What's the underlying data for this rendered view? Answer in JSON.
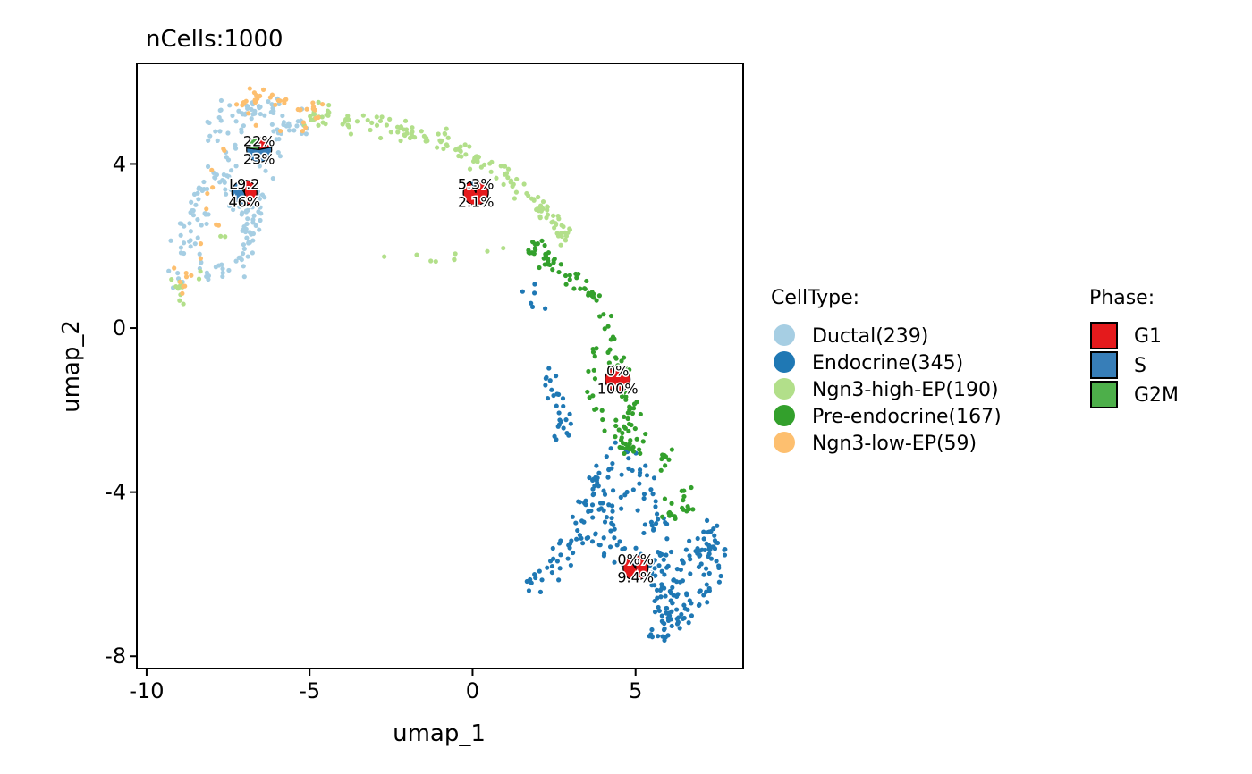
{
  "chart_data": {
    "type": "scatter",
    "title": "nCells:1000",
    "xlabel": "umap_1",
    "ylabel": "umap_2",
    "xlim": [
      -10.3,
      8.3
    ],
    "ylim": [
      -8.3,
      6.45
    ],
    "xticks": [
      -10,
      -5,
      0,
      5
    ],
    "yticks": [
      -8,
      -4,
      0,
      4
    ],
    "xtick_labels": [
      "-10",
      "-5",
      "0",
      "5"
    ],
    "ytick_labels": [
      "-8",
      "-4",
      "0",
      "4"
    ],
    "grid": false,
    "legend_celltype": {
      "title": "CellType:",
      "entries": [
        {
          "label": "Ductal(239)",
          "color": "#A6CEE3"
        },
        {
          "label": "Endocrine(345)",
          "color": "#1F78B4"
        },
        {
          "label": "Ngn3-high-EP(190)",
          "color": "#B2DF8A"
        },
        {
          "label": "Pre-endocrine(167)",
          "color": "#33A02C"
        },
        {
          "label": "Ngn3-low-EP(59)",
          "color": "#FDBF6F"
        }
      ]
    },
    "legend_phase": {
      "title": "Phase:",
      "entries": [
        {
          "label": "G1",
          "color": "#E41A1C"
        },
        {
          "label": "S",
          "color": "#377EB8"
        },
        {
          "label": "G2M",
          "color": "#4DAF4A"
        }
      ]
    },
    "series": [
      {
        "name": "Ductal(239)",
        "color": "#A6CEE3",
        "path": [
          [
            -9.1,
            1.0
          ],
          [
            -9.0,
            1.6
          ],
          [
            -8.9,
            2.2
          ],
          [
            -8.6,
            2.7
          ],
          [
            -8.4,
            3.2
          ],
          [
            -8.1,
            3.6
          ],
          [
            -7.8,
            3.7
          ],
          [
            -7.5,
            3.5
          ],
          [
            -7.3,
            3.2
          ],
          [
            -7.1,
            2.9
          ],
          [
            -6.9,
            2.6
          ],
          [
            -6.8,
            2.2
          ],
          [
            -6.9,
            1.8
          ],
          [
            -7.2,
            1.5
          ],
          [
            -7.6,
            1.3
          ],
          [
            -8.0,
            1.2
          ],
          [
            -8.4,
            1.6
          ],
          [
            -8.7,
            2.0
          ],
          [
            -7.4,
            4.0
          ],
          [
            -7.2,
            4.5
          ],
          [
            -7.1,
            5.0
          ],
          [
            -6.8,
            5.4
          ],
          [
            -6.4,
            5.5
          ],
          [
            -6.0,
            5.3
          ],
          [
            -5.9,
            4.9
          ],
          [
            -6.1,
            4.5
          ],
          [
            -6.3,
            4.1
          ],
          [
            -6.5,
            3.7
          ],
          [
            -6.6,
            3.3
          ],
          [
            -6.6,
            2.9
          ],
          [
            -6.7,
            2.5
          ],
          [
            -7.7,
            4.4
          ],
          [
            -7.9,
            5.0
          ],
          [
            -7.5,
            5.4
          ],
          [
            -5.5,
            5.1
          ],
          [
            -5.2,
            4.8
          ]
        ],
        "count": 239,
        "spread": 0.16
      },
      {
        "name": "Endocrine(345)",
        "color": "#1F78B4",
        "path": [
          [
            1.8,
            -6.3
          ],
          [
            2.3,
            -6.0
          ],
          [
            2.8,
            -5.6
          ],
          [
            3.2,
            -5.2
          ],
          [
            3.5,
            -4.7
          ],
          [
            3.7,
            -4.2
          ],
          [
            3.9,
            -3.8
          ],
          [
            4.2,
            -3.4
          ],
          [
            4.6,
            -3.2
          ],
          [
            5.0,
            -3.4
          ],
          [
            5.3,
            -3.8
          ],
          [
            5.5,
            -4.2
          ],
          [
            5.6,
            -4.7
          ],
          [
            5.7,
            -5.2
          ],
          [
            5.8,
            -5.7
          ],
          [
            5.9,
            -6.2
          ],
          [
            6.0,
            -6.7
          ],
          [
            6.0,
            -7.2
          ],
          [
            5.8,
            -7.5
          ],
          [
            5.6,
            -7.2
          ],
          [
            6.2,
            -6.5
          ],
          [
            6.5,
            -6.0
          ],
          [
            6.8,
            -5.6
          ],
          [
            7.1,
            -5.2
          ],
          [
            7.4,
            -5.0
          ],
          [
            7.5,
            -5.5
          ],
          [
            7.3,
            -6.0
          ],
          [
            7.0,
            -6.5
          ],
          [
            6.6,
            -6.9
          ],
          [
            6.2,
            -7.1
          ],
          [
            4.6,
            -4.2
          ],
          [
            4.2,
            -4.8
          ],
          [
            3.8,
            -5.4
          ],
          [
            4.8,
            -5.2
          ],
          [
            5.1,
            -6.0
          ],
          [
            2.6,
            -2.3
          ],
          [
            2.9,
            -2.6
          ],
          [
            1.8,
            0.6
          ]
        ],
        "count": 345,
        "spread": 0.2
      },
      {
        "name": "Ngn3-high-EP(190)",
        "color": "#B2DF8A",
        "path": [
          [
            -4.6,
            5.3
          ],
          [
            -4.0,
            5.1
          ],
          [
            -3.4,
            5.0
          ],
          [
            -2.8,
            4.9
          ],
          [
            -2.2,
            4.8
          ],
          [
            -1.6,
            4.7
          ],
          [
            -1.0,
            4.6
          ],
          [
            -0.5,
            4.4
          ],
          [
            0.0,
            4.2
          ],
          [
            0.4,
            4.0
          ],
          [
            0.8,
            3.8
          ],
          [
            1.2,
            3.6
          ],
          [
            1.6,
            3.3
          ],
          [
            2.0,
            3.0
          ],
          [
            2.4,
            2.6
          ],
          [
            2.8,
            2.3
          ],
          [
            3.0,
            2.0
          ],
          [
            -9.1,
            1.1
          ],
          [
            -8.9,
            0.8
          ],
          [
            -4.9,
            5.2
          ]
        ],
        "count": 190,
        "spread": 0.12
      },
      {
        "name": "Pre-endocrine(167)",
        "color": "#33A02C",
        "path": [
          [
            1.8,
            2.0
          ],
          [
            2.2,
            1.7
          ],
          [
            2.8,
            1.3
          ],
          [
            3.4,
            1.0
          ],
          [
            3.8,
            0.6
          ],
          [
            4.0,
            0.2
          ],
          [
            4.2,
            -0.3
          ],
          [
            4.4,
            -0.7
          ],
          [
            4.6,
            -1.2
          ],
          [
            4.8,
            -1.6
          ],
          [
            4.9,
            -2.0
          ],
          [
            4.7,
            -2.4
          ],
          [
            4.5,
            -2.8
          ],
          [
            5.0,
            -3.0
          ],
          [
            5.4,
            -2.6
          ],
          [
            3.8,
            -0.4
          ],
          [
            3.6,
            -1.0
          ],
          [
            3.5,
            -1.5
          ],
          [
            5.8,
            -4.5
          ],
          [
            6.8,
            -4.6
          ],
          [
            5.9,
            -3.2
          ]
        ],
        "count": 167,
        "spread": 0.13
      },
      {
        "name": "Ngn3-low-EP(59)",
        "color": "#FDBF6F",
        "path": [
          [
            -6.6,
            5.7
          ],
          [
            -6.9,
            5.5
          ],
          [
            -7.2,
            5.3
          ],
          [
            -6.2,
            5.6
          ],
          [
            -5.8,
            5.6
          ],
          [
            -5.4,
            5.3
          ],
          [
            -5.0,
            5.3
          ],
          [
            -4.7,
            5.4
          ],
          [
            -5.1,
            4.9
          ],
          [
            -7.6,
            4.5
          ],
          [
            -7.8,
            4.0
          ],
          [
            -8.8,
            0.9
          ],
          [
            -9.0,
            1.3
          ],
          [
            -8.7,
            1.0
          ],
          [
            -6.5,
            5.1
          ]
        ],
        "count": 59,
        "spread": 0.11
      }
    ],
    "pies": [
      {
        "x": -6.55,
        "y": 4.35,
        "r": 0.62,
        "labels": [
          "22%",
          "23%"
        ],
        "slices": [
          {
            "phase": "G1",
            "value": 22
          },
          {
            "phase": "S",
            "value": 55
          },
          {
            "phase": "G2M",
            "value": 23
          }
        ]
      },
      {
        "x": -7.0,
        "y": 3.3,
        "r": 0.62,
        "labels": [
          "L9.2",
          "46%"
        ],
        "slices": [
          {
            "phase": "G1",
            "value": 46
          },
          {
            "phase": "S",
            "value": 44.8
          },
          {
            "phase": "G2M",
            "value": 9.2
          }
        ]
      },
      {
        "x": 0.1,
        "y": 3.3,
        "r": 0.62,
        "labels": [
          "5.3%",
          "2.1%"
        ],
        "slices": [
          {
            "phase": "G1",
            "value": 92.6
          },
          {
            "phase": "S",
            "value": 5.3
          },
          {
            "phase": "G2M",
            "value": 2.1
          }
        ]
      },
      {
        "x": 4.45,
        "y": -1.25,
        "r": 0.62,
        "labels": [
          "0%",
          "100%"
        ],
        "slices": [
          {
            "phase": "G1",
            "value": 100
          },
          {
            "phase": "S",
            "value": 0
          },
          {
            "phase": "G2M",
            "value": 0
          }
        ]
      },
      {
        "x": 5.0,
        "y": -5.85,
        "r": 0.62,
        "labels": [
          "0%%",
          "9.4%"
        ],
        "slices": [
          {
            "phase": "G1",
            "value": 90.6
          },
          {
            "phase": "S",
            "value": 9.4
          },
          {
            "phase": "G2M",
            "value": 0
          }
        ]
      }
    ]
  }
}
